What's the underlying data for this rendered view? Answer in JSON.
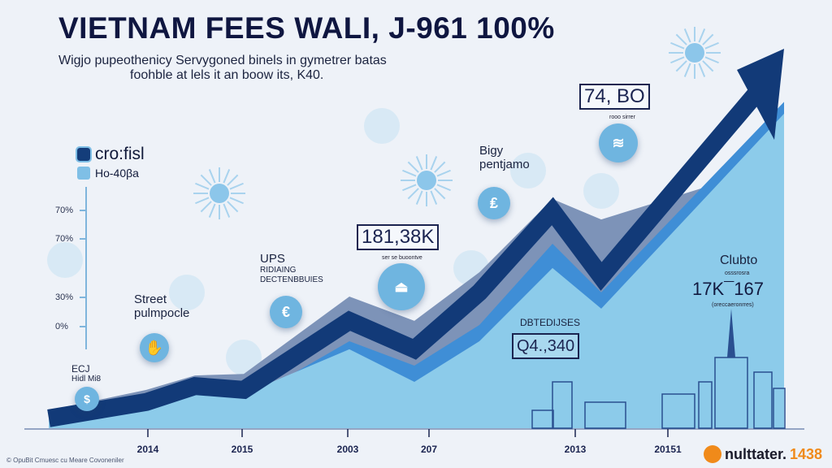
{
  "title": "VIETNAM FEES WALI, J-961 100%",
  "subtitle": [
    "Wigjo pupeothenicy Servygoned binels in gymetrer batas",
    "foohble at lels it an boow its, K40."
  ],
  "legend": [
    {
      "label": "cro:fisl",
      "color": "#143d7a"
    },
    {
      "label": "Ho-40βa",
      "color": "#7fbfe6"
    }
  ],
  "colors": {
    "navy": "#123a78",
    "mid": "#3f8ed6",
    "grey": "#7d93b8",
    "light": "#8ccbea",
    "accent": "#f08a1a"
  },
  "chart_data": {
    "type": "area",
    "title": "VIETNAM FEES WALI, J-961 100%",
    "y_ticks": [
      "70%",
      "70%",
      "30%",
      "0%"
    ],
    "x_ticks": [
      "2014",
      "2015",
      "2003",
      "207",
      "2013",
      "20151"
    ],
    "ylim": [
      0,
      100
    ],
    "x": [
      0,
      1,
      2,
      3,
      4,
      5,
      6,
      7,
      8,
      9
    ],
    "series": [
      {
        "role": "grey-area",
        "values": [
          4.7,
          10.1,
          13.9,
          14.3,
          34.7,
          28.3,
          41.1,
          60.4,
          55.0,
          70.0
        ]
      },
      {
        "role": "light-area",
        "values": [
          2.6,
          5.8,
          10.1,
          9.0,
          20.8,
          12.2,
          22.9,
          42.2,
          31.5,
          82.9
        ]
      },
      {
        "role": "mid-area",
        "values": [
          1.5,
          4.7,
          7.9,
          6.9,
          22.9,
          16.5,
          27.2,
          48.6,
          35.8,
          86.0
        ]
      },
      {
        "role": "navy-arrow",
        "values": [
          2.6,
          6.9,
          11.1,
          10.1,
          28.3,
          20.8,
          35.8,
          57.2,
          40.0,
          100
        ]
      }
    ],
    "grid": false,
    "legend_placement": "top-left"
  },
  "annotations": {
    "ect": [
      "ECJ",
      "Hidl Mi8"
    ],
    "street": [
      "Street",
      "pulmpocle"
    ],
    "ups": [
      "UPS",
      "RIDIAING",
      "DECTENBBUIES"
    ],
    "box1": "181,38K",
    "box1_caption": "ser se buoontve",
    "bigy": [
      "Bigy",
      "pentjamo"
    ],
    "box2": "74, BO",
    "box2_caption": "rooo sirrer",
    "dated": "DBTEDIJSES",
    "box3": "Q4.,340",
    "clubto": "Clubto",
    "clubto_caption": "osssrosra",
    "clubto_value": "17K¯167",
    "clubto_note": "(oreccaeronrres)"
  },
  "icons": [
    "dollar-icon",
    "hands-icon",
    "euro-icon",
    "stack-icon",
    "pound-icon",
    "wing-icon"
  ],
  "footer": "© OpuBit Cmuesc cu Meare Covoneniler",
  "brand": {
    "name": "nulttater.",
    "number": "1438"
  }
}
